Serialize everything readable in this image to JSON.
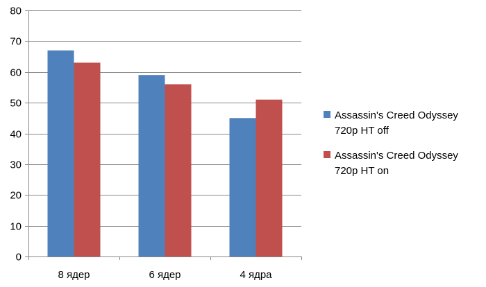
{
  "chart_data": {
    "type": "bar",
    "categories": [
      "8 ядер",
      "6 ядер",
      "4 ядра"
    ],
    "series": [
      {
        "name": "Assassin's Creed Odyssey 720p HT off",
        "legend_lines": [
          "Assassin's Creed Odyssey",
          "720p HT off"
        ],
        "color": "#4f81bd",
        "values": [
          67,
          59,
          45
        ]
      },
      {
        "name": "Assassin's Creed Odyssey 720p HT on",
        "legend_lines": [
          "Assassin's Creed Odyssey",
          "720p HT on"
        ],
        "color": "#c0504d",
        "values": [
          63,
          56,
          51
        ]
      }
    ],
    "ylim": [
      0,
      80
    ],
    "yticks": [
      0,
      10,
      20,
      30,
      40,
      50,
      60,
      70,
      80
    ],
    "grid": true,
    "legend_position": "right",
    "title": "",
    "xlabel": "",
    "ylabel": ""
  }
}
